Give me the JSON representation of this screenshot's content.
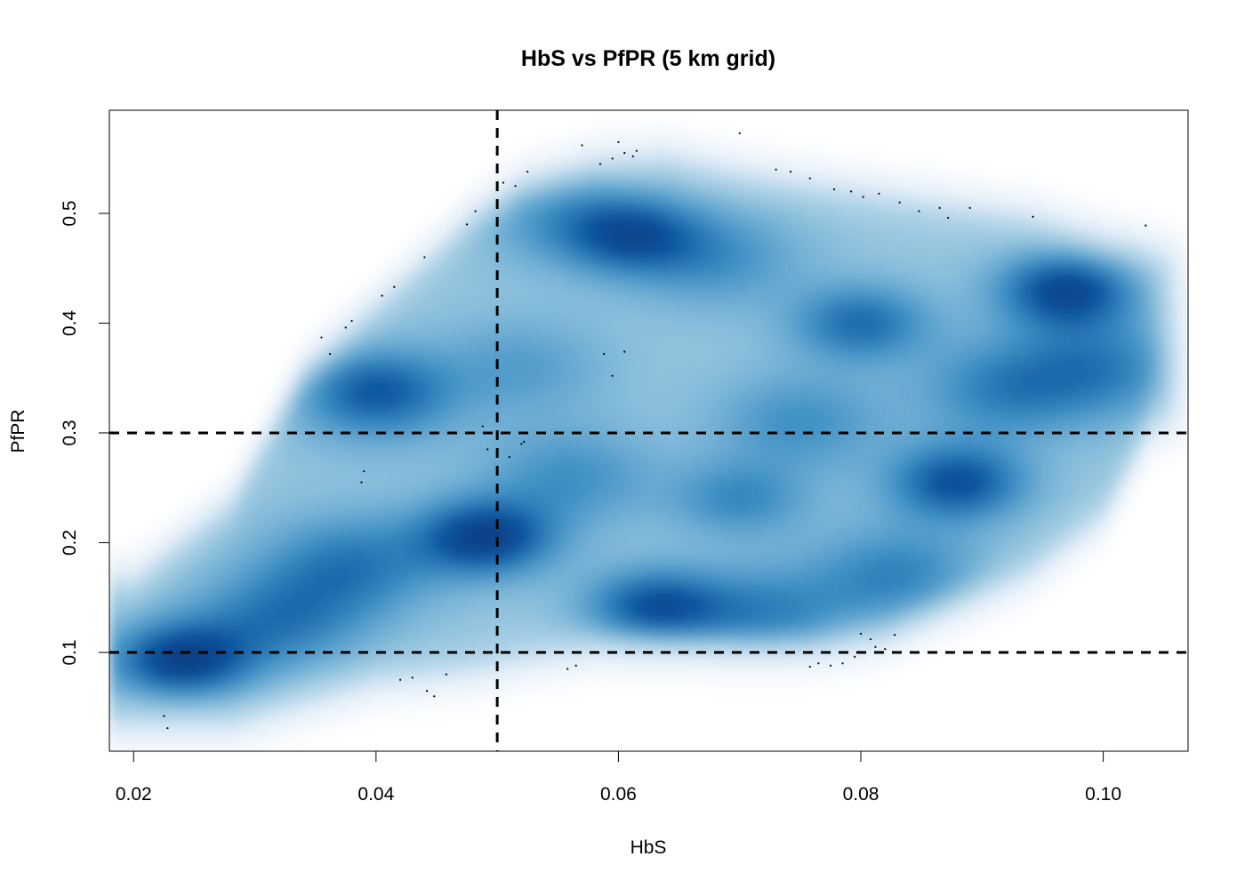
{
  "chart_data": {
    "type": "heatmap",
    "subtype": "smoothed-density-scatter",
    "title": "HbS vs PfPR (5 km grid)",
    "xlabel": "HbS",
    "ylabel": "PfPR",
    "xlim": [
      0.018,
      0.107
    ],
    "ylim": [
      0.01,
      0.594
    ],
    "x_ticks": [
      0.02,
      0.04,
      0.06,
      0.08,
      0.1
    ],
    "x_tick_labels": [
      "0.02",
      "0.04",
      "0.06",
      "0.08",
      "0.10"
    ],
    "y_ticks": [
      0.1,
      0.2,
      0.3,
      0.4,
      0.5
    ],
    "y_tick_labels": [
      "0.1",
      "0.2",
      "0.3",
      "0.4",
      "0.5"
    ],
    "grid": false,
    "color_scale": [
      "#ffffff",
      "#deebf7",
      "#9ecae1",
      "#4292c6",
      "#08519c",
      "#08306b"
    ],
    "density_clusters": [
      {
        "x": 0.024,
        "y": 0.093,
        "weight": 1.0
      },
      {
        "x": 0.049,
        "y": 0.205,
        "weight": 1.0
      },
      {
        "x": 0.063,
        "y": 0.14,
        "weight": 0.85
      },
      {
        "x": 0.097,
        "y": 0.43,
        "weight": 0.95
      },
      {
        "x": 0.088,
        "y": 0.255,
        "weight": 0.85
      },
      {
        "x": 0.061,
        "y": 0.48,
        "weight": 0.75
      },
      {
        "x": 0.08,
        "y": 0.4,
        "weight": 0.65
      },
      {
        "x": 0.04,
        "y": 0.34,
        "weight": 0.45
      },
      {
        "x": 0.07,
        "y": 0.24,
        "weight": 0.45
      }
    ],
    "outlier_points": [
      [
        0.0225,
        0.042
      ],
      [
        0.0228,
        0.031
      ],
      [
        0.0355,
        0.387
      ],
      [
        0.0362,
        0.372
      ],
      [
        0.0375,
        0.396
      ],
      [
        0.038,
        0.402
      ],
      [
        0.039,
        0.265
      ],
      [
        0.0388,
        0.255
      ],
      [
        0.0405,
        0.425
      ],
      [
        0.0415,
        0.433
      ],
      [
        0.044,
        0.46
      ],
      [
        0.0475,
        0.49
      ],
      [
        0.0482,
        0.502
      ],
      [
        0.0488,
        0.306
      ],
      [
        0.0492,
        0.285
      ],
      [
        0.0505,
        0.528
      ],
      [
        0.051,
        0.278
      ],
      [
        0.0515,
        0.525
      ],
      [
        0.052,
        0.29
      ],
      [
        0.0522,
        0.292
      ],
      [
        0.0525,
        0.538
      ],
      [
        0.042,
        0.075
      ],
      [
        0.043,
        0.077
      ],
      [
        0.0442,
        0.065
      ],
      [
        0.0448,
        0.06
      ],
      [
        0.0458,
        0.08
      ],
      [
        0.0565,
        0.088
      ],
      [
        0.0558,
        0.085
      ],
      [
        0.057,
        0.562
      ],
      [
        0.0585,
        0.545
      ],
      [
        0.0595,
        0.55
      ],
      [
        0.06,
        0.565
      ],
      [
        0.0605,
        0.555
      ],
      [
        0.0612,
        0.552
      ],
      [
        0.0615,
        0.557
      ],
      [
        0.0588,
        0.372
      ],
      [
        0.0595,
        0.352
      ],
      [
        0.0605,
        0.374
      ],
      [
        0.07,
        0.573
      ],
      [
        0.073,
        0.54
      ],
      [
        0.0742,
        0.538
      ],
      [
        0.0758,
        0.532
      ],
      [
        0.0778,
        0.522
      ],
      [
        0.0792,
        0.52
      ],
      [
        0.0802,
        0.515
      ],
      [
        0.0815,
        0.518
      ],
      [
        0.0832,
        0.51
      ],
      [
        0.0848,
        0.502
      ],
      [
        0.0865,
        0.505
      ],
      [
        0.0872,
        0.496
      ],
      [
        0.089,
        0.505
      ],
      [
        0.0942,
        0.497
      ],
      [
        0.1035,
        0.489
      ],
      [
        0.0758,
        0.087
      ],
      [
        0.0765,
        0.09
      ],
      [
        0.0775,
        0.088
      ],
      [
        0.0785,
        0.09
      ],
      [
        0.0795,
        0.096
      ],
      [
        0.08,
        0.117
      ],
      [
        0.0808,
        0.112
      ],
      [
        0.0812,
        0.105
      ],
      [
        0.082,
        0.103
      ],
      [
        0.0828,
        0.116
      ]
    ],
    "reference_lines": [
      {
        "orientation": "vertical",
        "value": 0.05,
        "style": "dashed"
      },
      {
        "orientation": "horizontal",
        "value": 0.3,
        "style": "dashed"
      },
      {
        "orientation": "horizontal",
        "value": 0.1,
        "style": "dashed"
      }
    ]
  }
}
